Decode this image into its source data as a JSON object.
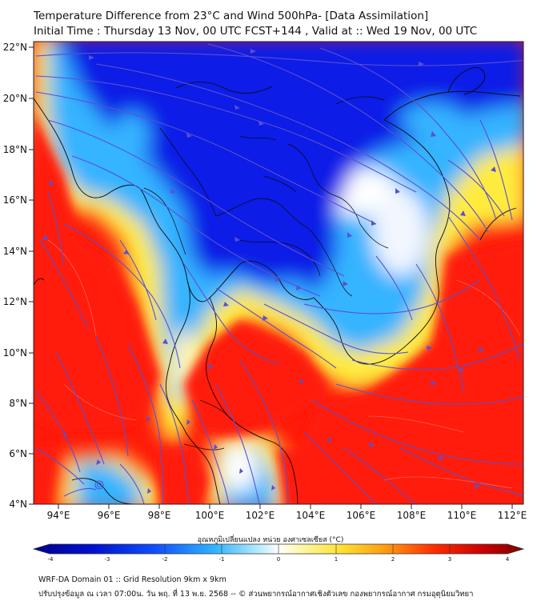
{
  "title": {
    "line1": "Temperature Difference from 23°C and Wind 500hPa- [Data Assimilation]",
    "line2": "Initial Time : Thursday 13 Nov, 00 UTC FCST+144 , Valid at ::  Wed 19 Nov, 00 UTC"
  },
  "map": {
    "lat_labels": [
      "22°N",
      "20°N",
      "18°N",
      "16°N",
      "14°N",
      "12°N",
      "10°N",
      "8°N",
      "6°N",
      "4°N"
    ],
    "lon_labels": [
      "94°E",
      "96°E",
      "98°E",
      "100°E",
      "102°E",
      "104°E",
      "106°E",
      "108°E",
      "110°E",
      "112°E"
    ],
    "colors": {
      "deep_blue": "#0a1ee6",
      "light_blue": "#35b4ff",
      "white": "#f4f4f4",
      "yellow": "#ffeb3c",
      "red": "#ff1a0a",
      "streamline": "#5a50d2"
    }
  },
  "colorbar": {
    "title": "อุณหภูมิเปลี่ยนแปลง หน่วย องศาเซลเซียส (°C)",
    "ticks": [
      "-4",
      "-3",
      "-2",
      "-1",
      "0",
      "1",
      "2",
      "3",
      "4"
    ]
  },
  "footer": {
    "line1": "WRF-DA Domain 01 :: Grid Resolution 9km x 9km",
    "line2": "ปรับปรุงข้อมูล ณ เวลา 07:00น. วัน พฤ. ที่ 13 พ.ย. 2568 -- © ส่วนพยากรณ์อากาศเชิงตัวเลข กองพยากรณ์อากาศ กรมอุตุนิยมวิทยา"
  }
}
